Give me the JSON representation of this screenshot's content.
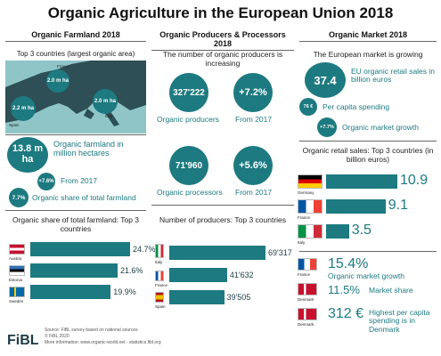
{
  "title": "Organic Agriculture in the European Union 2018",
  "columns": {
    "farmland": "Organic Farmland 2018",
    "producers": "Organic Producers & Processors 2018",
    "market": "Organic Market 2018"
  },
  "farmland": {
    "map_title": "Top 3 countries (largest organic area)",
    "map_bubbles": [
      {
        "country": "France",
        "value": "2.0 m ha"
      },
      {
        "country": "Spain",
        "value": "2.2 m ha"
      },
      {
        "country": "Italy",
        "value": "2.0 m ha"
      }
    ],
    "total_value": "13.8 m ha",
    "total_label": "Organic farmland in million hectares",
    "growth_value": "+7.6%",
    "growth_label": "From 2017",
    "share_value": "7.7%",
    "share_label": "Organic share of total farmland"
  },
  "producers": {
    "intro": "The number of organic producers is increasing",
    "producers_value": "327'222",
    "producers_label": "Organic producers",
    "producers_growth": "+7.2%",
    "producers_growth_label": "From 2017",
    "processors_value": "71'960",
    "processors_label": "Organic processors",
    "processors_growth": "+5.6%",
    "processors_growth_label": "From 2017"
  },
  "market": {
    "intro": "The European market is growing",
    "sales_value": "37.4",
    "sales_label": "EU organic retail sales in billion euros",
    "per_capita_value": "76 €",
    "per_capita_label": "Per capita spending",
    "growth_value": "+7.7%",
    "growth_label": "Organic market growth",
    "retail_title": "Organic retail sales: Top 3 countries (in billion euros)",
    "stats": [
      {
        "country": "France",
        "value": "15.4%",
        "label": "Organic market growth"
      },
      {
        "country": "Denmark",
        "value": "11.5%",
        "label": "Market share"
      },
      {
        "country": "Denmark",
        "value": "312 €",
        "label": "Highest per capita spending is in Denmark"
      }
    ]
  },
  "footer": {
    "logo": "FiBL",
    "source": "Source: FiBL survey based on national sources",
    "copyright": "© FiBL 2020",
    "more": "More information: www.organic-world.net - statistics.fibl.org"
  },
  "chart_data": [
    {
      "type": "bar",
      "title": "Organic share of total farmland: Top 3 countries",
      "categories": [
        "Austria",
        "Estonia",
        "Sweden"
      ],
      "values": [
        24.7,
        21.6,
        19.9
      ],
      "labels": [
        "24.7%",
        "21.6%",
        "19.9%"
      ]
    },
    {
      "type": "bar",
      "title": "Number of producers: Top 3 countries",
      "categories": [
        "Italy",
        "France",
        "Spain"
      ],
      "values": [
        69317,
        41632,
        39505
      ],
      "labels": [
        "69'317",
        "41'632",
        "39'505"
      ]
    },
    {
      "type": "bar",
      "title": "Organic retail sales: Top 3 countries (in billion euros)",
      "categories": [
        "Germany",
        "France",
        "Italy"
      ],
      "values": [
        10.9,
        9.1,
        3.5
      ],
      "labels": [
        "10.9",
        "9.1",
        "3.5"
      ]
    }
  ]
}
